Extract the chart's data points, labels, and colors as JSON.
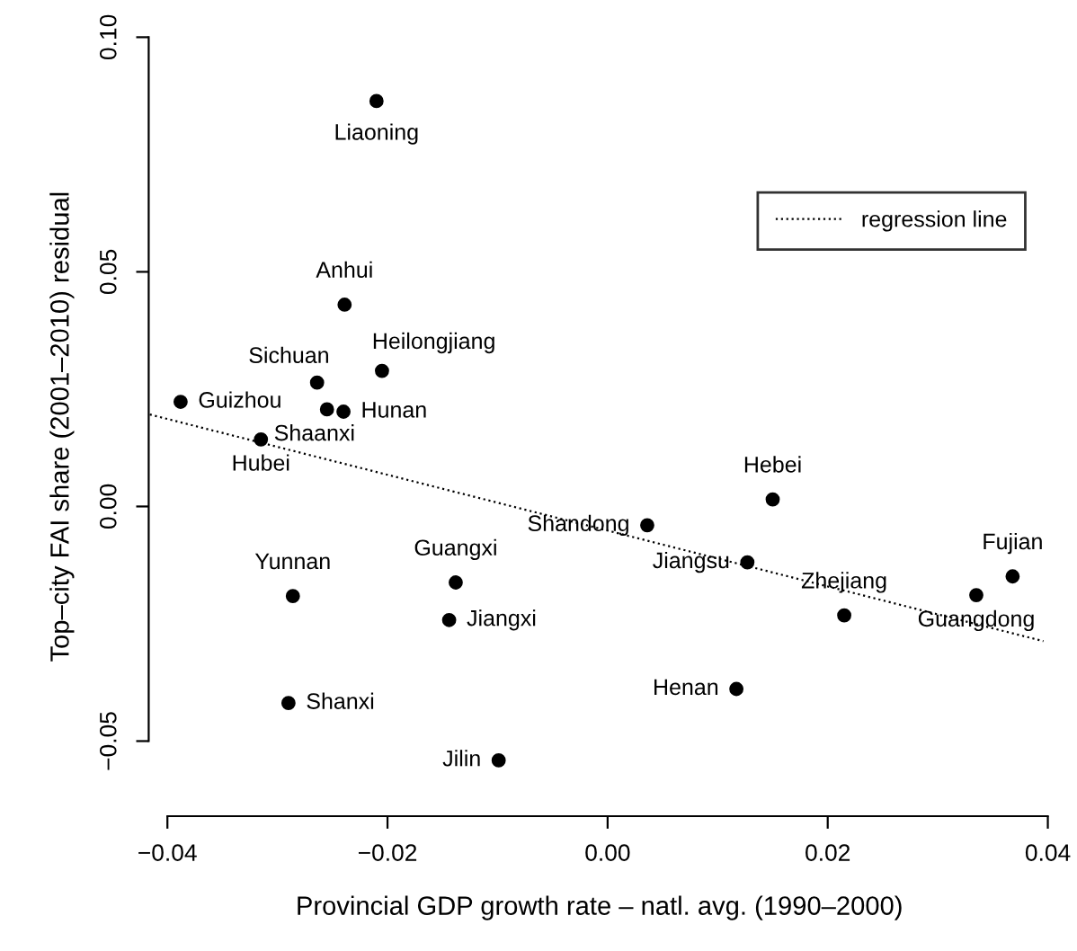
{
  "chart_data": {
    "type": "scatter",
    "xlabel": "Provincial GDP growth rate – natl. avg. (1990–2000)",
    "ylabel": "Top–city FAI share (2001–2010) residual",
    "xlim": [
      -0.0417,
      0.0402
    ],
    "ylim": [
      -0.066,
      0.1
    ],
    "xticks": [
      {
        "value": -0.04,
        "label": "−0.04"
      },
      {
        "value": -0.02,
        "label": "−0.02"
      },
      {
        "value": 0,
        "label": "0.00"
      },
      {
        "value": 0.02,
        "label": "0.02"
      },
      {
        "value": 0.04,
        "label": "0.04"
      }
    ],
    "yticks": [
      {
        "value": -0.05,
        "label": "−0.05"
      },
      {
        "value": 0,
        "label": "0.00"
      },
      {
        "value": 0.05,
        "label": "0.05"
      },
      {
        "value": 0.1,
        "label": "0.10"
      }
    ],
    "grid": false,
    "legend": "top right",
    "marker": "circle",
    "series": [
      {
        "color": "#000000",
        "x": [
          -0.021,
          -0.0239,
          -0.0205,
          -0.0264,
          -0.0255,
          -0.024,
          -0.0388,
          -0.0315,
          -0.0286,
          -0.0138,
          -0.0144,
          -0.029,
          -0.0099,
          0.0036,
          0.015,
          0.0127,
          0.0215,
          0.0335,
          0.0368,
          0.0117
        ],
        "values": [
          0.0864,
          0.043,
          0.0289,
          0.0264,
          0.0207,
          0.0202,
          0.0223,
          0.0143,
          -0.0191,
          -0.0162,
          -0.0242,
          -0.0419,
          -0.0541,
          -0.004,
          0.0015,
          -0.0119,
          -0.0232,
          -0.0189,
          -0.0149,
          -0.0389
        ]
      },
      {
        "type": "line",
        "name": "regression line",
        "color": "#000000",
        "line_style": "dotted",
        "marker": "none",
        "x": [
          -0.0416,
          0.0396
        ],
        "values": [
          0.0196,
          -0.0287
        ]
      }
    ],
    "annotations": [
      {
        "text": "Liaoning",
        "x": -0.021,
        "y": 0.0864
      },
      {
        "text": "Anhui",
        "x": -0.0239,
        "y": 0.043
      },
      {
        "text": "Heilongjiang",
        "x": -0.0205,
        "y": 0.0289
      },
      {
        "text": "Sichuan",
        "x": -0.0264,
        "y": 0.0264
      },
      {
        "text": "Shaanxi",
        "x": -0.0255,
        "y": 0.0207
      },
      {
        "text": "Hunan",
        "x": -0.024,
        "y": 0.0202
      },
      {
        "text": "Guizhou",
        "x": -0.0388,
        "y": 0.0223
      },
      {
        "text": "Hubei",
        "x": -0.0315,
        "y": 0.0143
      },
      {
        "text": "Yunnan",
        "x": -0.0286,
        "y": -0.0191
      },
      {
        "text": "Guangxi",
        "x": -0.0138,
        "y": -0.0162
      },
      {
        "text": "Jiangxi",
        "x": -0.0144,
        "y": -0.0242
      },
      {
        "text": "Shanxi",
        "x": -0.029,
        "y": -0.0419
      },
      {
        "text": "Jilin",
        "x": -0.0099,
        "y": -0.0541
      },
      {
        "text": "Shandong",
        "x": 0.0036,
        "y": -0.004
      },
      {
        "text": "Hebei",
        "x": 0.015,
        "y": 0.0015
      },
      {
        "text": "Jiangsu",
        "x": 0.0127,
        "y": -0.0119
      },
      {
        "text": "Zhejiang",
        "x": 0.0215,
        "y": -0.0232
      },
      {
        "text": "Guangdong",
        "x": 0.0335,
        "y": -0.0189
      },
      {
        "text": "Fujian",
        "x": 0.0368,
        "y": -0.0149
      },
      {
        "text": "Henan",
        "x": 0.0117,
        "y": -0.0389
      }
    ]
  }
}
